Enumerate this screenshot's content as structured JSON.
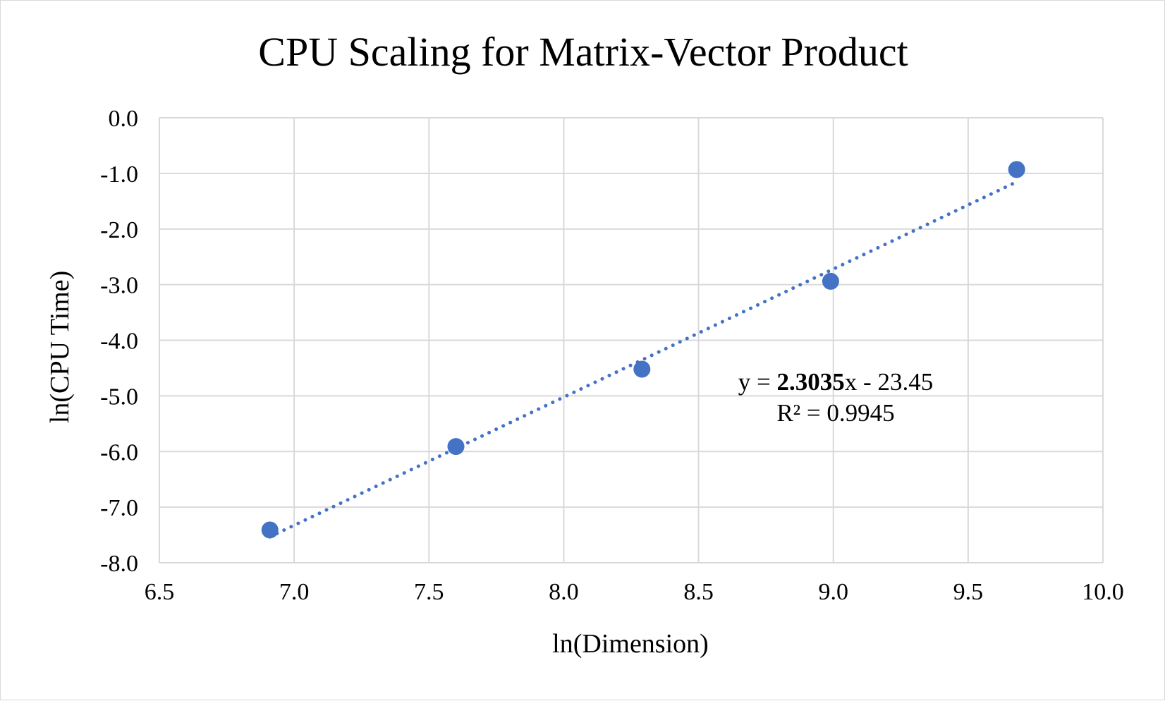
{
  "chart_data": {
    "type": "scatter",
    "title": "CPU Scaling for Matrix-Vector Product",
    "xlabel": "ln(Dimension)",
    "ylabel": "ln(CPU Time)",
    "xlim": [
      6.5,
      10.0
    ],
    "ylim": [
      -8.0,
      0.0
    ],
    "x_ticks": [
      "6.5",
      "7.0",
      "7.5",
      "8.0",
      "8.5",
      "9.0",
      "9.5",
      "10.0"
    ],
    "y_ticks": [
      "0.0",
      "-1.0",
      "-2.0",
      "-3.0",
      "-4.0",
      "-5.0",
      "-6.0",
      "-7.0",
      "-8.0"
    ],
    "grid": true,
    "series": [
      {
        "points": [
          {
            "x": 6.91,
            "y": -7.41
          },
          {
            "x": 7.6,
            "y": -5.91
          },
          {
            "x": 8.29,
            "y": -4.52
          },
          {
            "x": 8.99,
            "y": -2.94
          },
          {
            "x": 9.68,
            "y": -0.93
          }
        ],
        "color": "#4472C4"
      }
    ],
    "trendline": {
      "type": "linear",
      "style": "dotted",
      "slope": 2.3035,
      "intercept": -23.45,
      "equation_prefix": "y = ",
      "equation_slope": "2.3035",
      "equation_suffix": "x - 23.45",
      "r_squared": "R² = 0.9945",
      "color": "#4472C4"
    }
  }
}
